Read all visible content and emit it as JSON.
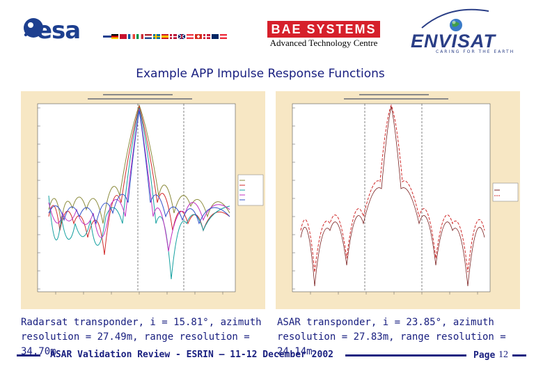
{
  "header": {
    "esa_word": "esa",
    "bae_label": "BAE SYSTEMS",
    "bae_subtitle": "Advanced Technology Centre",
    "envisat_word": "ENVISAT",
    "envisat_tagline": "CARING FOR THE EARTH"
  },
  "slide": {
    "title": "Example APP Impulse Response Functions"
  },
  "plots": {
    "left": {
      "caption": "Radarsat transponder, i = 15.81°, azimuth resolution = 27.49m, range resolution = 34.70m"
    },
    "right": {
      "caption": "ASAR transponder, i = 23.85°, azimuth resolution = 27.83m, range resolution = 24.14m"
    }
  },
  "footer": {
    "text": "ASAR Validation Review - ESRIN – 11-12 December  2002",
    "page_word": "Page",
    "page_number": "12"
  },
  "colors": {
    "accent": "#1a2080",
    "bae_red": "#d6202b",
    "plot_bg": "#f7e7c4",
    "esa_blue": "#1d3f8f"
  },
  "icons": [
    "esa-logo-icon",
    "european-flags-icon",
    "envisat-globe-icon"
  ]
}
